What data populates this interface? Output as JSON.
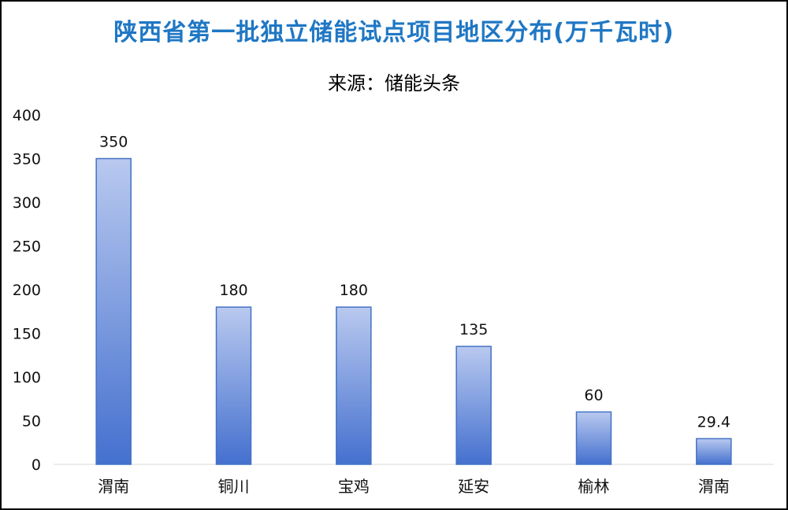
{
  "chart_data": {
    "type": "bar",
    "title": "陕西省第一批独立储能试点项目地区分布(万千瓦时)",
    "subtitle": "来源：储能头条",
    "categories": [
      "渭南",
      "铜川",
      "宝鸡",
      "延安",
      "榆林",
      "渭南"
    ],
    "values": [
      350,
      180,
      180,
      135,
      60,
      29.4
    ],
    "data_labels": [
      "350",
      "180",
      "180",
      "135",
      "60",
      "29.4"
    ],
    "ylim": [
      0,
      400
    ],
    "yticks": [
      0,
      50,
      100,
      150,
      200,
      250,
      300,
      350,
      400
    ],
    "grid": false,
    "legend": "none",
    "bar_color_top": "#b9c9ef",
    "bar_color_bottom": "#4470cf",
    "bar_border": "#4472c4",
    "title_color": "#1f77c4"
  }
}
